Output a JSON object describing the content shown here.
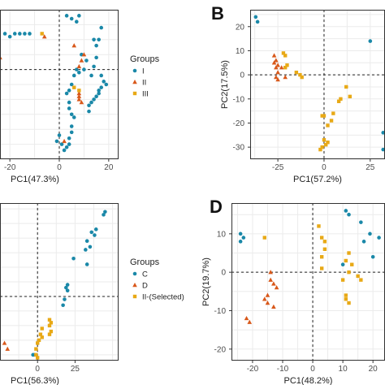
{
  "colors": {
    "teal": "#1a88a8",
    "orange": "#d8581a",
    "gold": "#e8a916",
    "grid": "#ebebeb",
    "border": "#333333",
    "ref": "#222222"
  },
  "chart_data": [
    {
      "id": "A",
      "letter": "",
      "type": "scatter",
      "xlabel": "PC1(47.3%)",
      "ylabel": "",
      "xlim": [
        -24,
        24
      ],
      "ylim": [
        -30,
        20
      ],
      "xticks": [
        -20,
        0,
        20
      ],
      "xtick_labels": [
        "-20",
        "0",
        "20"
      ],
      "yticks": [],
      "ytick_labels": [],
      "grid": true,
      "zero_lines": true,
      "legend": {
        "title": "Groups",
        "entries": [
          {
            "label": "I",
            "marker": "circle",
            "color": "teal"
          },
          {
            "label": "II",
            "marker": "triangle",
            "color": "orange"
          },
          {
            "label": "III",
            "marker": "square",
            "color": "gold"
          }
        ]
      },
      "series": [
        {
          "color": "teal",
          "marker": "circle",
          "points": [
            [
              -22,
              12
            ],
            [
              -20,
              11
            ],
            [
              -18,
              12
            ],
            [
              -16,
              12
            ],
            [
              -14,
              12
            ],
            [
              -12,
              12
            ],
            [
              3,
              18
            ],
            [
              5,
              17
            ],
            [
              7,
              16
            ],
            [
              8,
              18
            ],
            [
              14,
              10
            ],
            [
              15,
              8
            ],
            [
              16,
              10
            ],
            [
              17,
              14
            ],
            [
              15,
              4
            ],
            [
              14,
              1
            ],
            [
              13,
              -2
            ],
            [
              9,
              5
            ],
            [
              11,
              3
            ],
            [
              10,
              0
            ],
            [
              7,
              0
            ],
            [
              6,
              -2
            ],
            [
              8,
              -1
            ],
            [
              17,
              -2
            ],
            [
              18,
              -4
            ],
            [
              19,
              -5
            ],
            [
              17,
              -6
            ],
            [
              16,
              -7
            ],
            [
              16,
              -8
            ],
            [
              15,
              -9
            ],
            [
              14,
              -10
            ],
            [
              13,
              -11
            ],
            [
              12,
              -12
            ],
            [
              12,
              -14
            ],
            [
              5,
              -5
            ],
            [
              4,
              -7
            ],
            [
              3,
              -8
            ],
            [
              4,
              -11
            ],
            [
              4,
              -13
            ],
            [
              5,
              -15
            ],
            [
              6,
              -16
            ],
            [
              5,
              -19
            ],
            [
              5,
              -21
            ],
            [
              4,
              -23
            ],
            [
              4,
              -25
            ],
            [
              3,
              -26
            ],
            [
              2,
              -27
            ],
            [
              0,
              -22
            ],
            [
              -1,
              -24
            ],
            [
              1,
              -25
            ]
          ]
        },
        {
          "color": "orange",
          "marker": "triangle",
          "points": [
            [
              -6,
              11
            ],
            [
              -24,
              4
            ],
            [
              8,
              1
            ],
            [
              10,
              5
            ],
            [
              9,
              3
            ],
            [
              8,
              -8
            ],
            [
              8,
              -9
            ],
            [
              8,
              -10
            ],
            [
              9,
              -11
            ],
            [
              6,
              8
            ],
            [
              2,
              -24
            ]
          ]
        },
        {
          "color": "gold",
          "marker": "square",
          "points": [
            [
              -7,
              12
            ],
            [
              6,
              -6
            ],
            [
              8,
              -7
            ]
          ]
        }
      ]
    },
    {
      "id": "B",
      "letter": "B",
      "type": "scatter",
      "xlabel": "PC1(57.2%)",
      "ylabel": "PC2(17.5%)",
      "xlim": [
        -40,
        33
      ],
      "ylim": [
        -35,
        27
      ],
      "xticks": [
        -25,
        0,
        25
      ],
      "xtick_labels": [
        "-25",
        "0",
        "25"
      ],
      "yticks": [
        20,
        10,
        0,
        -10,
        -20,
        -30
      ],
      "ytick_labels": [
        "20",
        "10",
        "0",
        "-10",
        "-20",
        "-30"
      ],
      "grid": true,
      "zero_lines": true,
      "series": [
        {
          "color": "teal",
          "marker": "circle",
          "points": [
            [
              -37,
              24
            ],
            [
              -36,
              22
            ],
            [
              25,
              14
            ],
            [
              32,
              -24
            ],
            [
              32,
              -31
            ]
          ]
        },
        {
          "color": "orange",
          "marker": "triangle",
          "points": [
            [
              -27,
              8
            ],
            [
              -26,
              6
            ],
            [
              -27,
              5
            ],
            [
              -25,
              4
            ],
            [
              -26,
              3
            ],
            [
              -23,
              3
            ],
            [
              -25,
              1
            ],
            [
              -26,
              -1
            ],
            [
              -25,
              -2
            ],
            [
              -21,
              -1
            ]
          ]
        },
        {
          "color": "gold",
          "marker": "square",
          "points": [
            [
              -22,
              9
            ],
            [
              -21,
              8
            ],
            [
              -20,
              4
            ],
            [
              -21,
              3
            ],
            [
              -15,
              1
            ],
            [
              -13,
              0
            ],
            [
              -12,
              -1
            ],
            [
              12,
              -5
            ],
            [
              14,
              -9
            ],
            [
              9,
              -10
            ],
            [
              8,
              -11
            ],
            [
              5,
              -16
            ],
            [
              4,
              -19
            ],
            [
              2,
              -21
            ],
            [
              0,
              -17
            ],
            [
              -1,
              -17
            ],
            [
              0,
              -27
            ],
            [
              2,
              -28
            ],
            [
              1,
              -29
            ],
            [
              -1,
              -30
            ],
            [
              -2,
              -31
            ]
          ]
        }
      ]
    },
    {
      "id": "C",
      "letter": "",
      "type": "scatter",
      "xlabel": "PC1(56.3%)",
      "ylabel": "",
      "xlim": [
        -25,
        54
      ],
      "ylim": [
        -22,
        32
      ],
      "xticks": [
        0,
        25
      ],
      "xtick_labels": [
        "0",
        "25"
      ],
      "yticks": [],
      "ytick_labels": [],
      "grid": true,
      "zero_lines": true,
      "legend": {
        "title": "Groups",
        "entries": [
          {
            "label": "C",
            "marker": "circle",
            "color": "teal"
          },
          {
            "label": "D",
            "marker": "triangle",
            "color": "orange"
          },
          {
            "label": "II-(Selected)",
            "marker": "square",
            "color": "gold"
          }
        ]
      },
      "series": [
        {
          "color": "teal",
          "marker": "circle",
          "points": [
            [
              45,
              29
            ],
            [
              44,
              28
            ],
            [
              39,
              23
            ],
            [
              38,
              21
            ],
            [
              36,
              22
            ],
            [
              33,
              19
            ],
            [
              35,
              17
            ],
            [
              32,
              16
            ],
            [
              24,
              13
            ],
            [
              33,
              11
            ],
            [
              20,
              4
            ],
            [
              19,
              3
            ],
            [
              20,
              2
            ],
            [
              18,
              -1
            ],
            [
              17,
              -3
            ],
            [
              -2,
              -20
            ],
            [
              -3,
              -20
            ]
          ]
        },
        {
          "color": "orange",
          "marker": "triangle",
          "points": [
            [
              -22,
              -16
            ],
            [
              -20,
              -18
            ]
          ]
        },
        {
          "color": "gold",
          "marker": "square",
          "points": [
            [
              8,
              -8
            ],
            [
              9,
              -9
            ],
            [
              8,
              -10
            ],
            [
              9,
              -12
            ],
            [
              8,
              -13
            ],
            [
              3,
              -11
            ],
            [
              2,
              -13
            ],
            [
              3,
              -14
            ],
            [
              1,
              -15
            ],
            [
              0,
              -16
            ],
            [
              -1,
              -18
            ],
            [
              -1,
              -20
            ],
            [
              0,
              -21
            ]
          ]
        }
      ]
    },
    {
      "id": "D",
      "letter": "D",
      "type": "scatter",
      "xlabel": "PC1(48.2%)",
      "ylabel": "PC2(19.7%)",
      "xlim": [
        -27,
        24
      ],
      "ylim": [
        -23,
        18
      ],
      "xticks": [
        -20,
        -10,
        0,
        10,
        20
      ],
      "xtick_labels": [
        "-20",
        "-10",
        "0",
        "10",
        "20"
      ],
      "yticks": [
        10,
        0,
        -10,
        -20
      ],
      "ytick_labels": [
        "10",
        "0",
        "-10",
        "-20"
      ],
      "grid": true,
      "zero_lines": true,
      "series": [
        {
          "color": "teal",
          "marker": "circle",
          "points": [
            [
              -24,
              10
            ],
            [
              -23,
              9
            ],
            [
              -24,
              8
            ],
            [
              11,
              16
            ],
            [
              12,
              15
            ],
            [
              16,
              13
            ],
            [
              19,
              10
            ],
            [
              17,
              8
            ],
            [
              22,
              9
            ],
            [
              10,
              2
            ],
            [
              20,
              4
            ]
          ]
        },
        {
          "color": "orange",
          "marker": "triangle",
          "points": [
            [
              -14,
              0
            ],
            [
              -14,
              -2
            ],
            [
              -13,
              -3
            ],
            [
              -12,
              -4
            ],
            [
              -15,
              -6
            ],
            [
              -16,
              -7
            ],
            [
              -15,
              -8
            ],
            [
              -13,
              -9
            ],
            [
              -22,
              -12
            ],
            [
              -21,
              -13
            ]
          ]
        },
        {
          "color": "gold",
          "marker": "square",
          "points": [
            [
              -16,
              9
            ],
            [
              2,
              12
            ],
            [
              3,
              9
            ],
            [
              4,
              8
            ],
            [
              4,
              6
            ],
            [
              3,
              4
            ],
            [
              3,
              1
            ],
            [
              12,
              5
            ],
            [
              11,
              3
            ],
            [
              13,
              2
            ],
            [
              12,
              0
            ],
            [
              15,
              -1
            ],
            [
              16,
              -2
            ],
            [
              10,
              -2
            ],
            [
              11,
              -6
            ],
            [
              11,
              -7
            ],
            [
              12,
              -8
            ]
          ]
        }
      ]
    }
  ]
}
